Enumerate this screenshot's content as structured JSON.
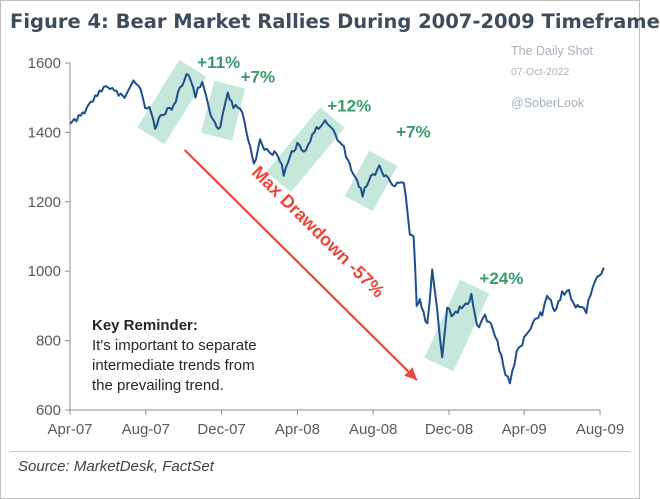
{
  "title": "Figure 4: Bear Market Rallies During 2007-2009 Timeframe",
  "watermark": {
    "name": "The Daily Shot",
    "date": "07-Oct-2022",
    "handle": "@SoberLook"
  },
  "source": "Source: MarketDesk, FactSet",
  "note": {
    "title": "Key Reminder:",
    "lines": [
      "It's important to separate",
      "intermediate trends from",
      "the prevailing trend."
    ]
  },
  "colors": {
    "line": "#1f4e8c",
    "rally": "#9fd8c3",
    "rally_text": "#3a9a6e",
    "drawdown": "#e8473d",
    "axis": "#595959"
  },
  "chart_data": {
    "type": "line",
    "title": "Figure 4: Bear Market Rallies During 2007-2009 Timeframe",
    "xlabel": "",
    "ylabel": "",
    "x_ticks": [
      "Apr-07",
      "Aug-07",
      "Dec-07",
      "Apr-08",
      "Aug-08",
      "Dec-08",
      "Apr-09",
      "Aug-09"
    ],
    "ylim": [
      600,
      1600
    ],
    "y_ticks": [
      600,
      800,
      1000,
      1200,
      1400,
      1600
    ],
    "grid": false,
    "series": [
      {
        "points": [
          [
            "2007-04-01",
            1425
          ],
          [
            "2007-04-15",
            1450
          ],
          [
            "2007-05-01",
            1480
          ],
          [
            "2007-05-15",
            1505
          ],
          [
            "2007-06-01",
            1530
          ],
          [
            "2007-06-15",
            1520
          ],
          [
            "2007-07-01",
            1510
          ],
          [
            "2007-07-12",
            1550
          ],
          [
            "2007-07-20",
            1535
          ],
          [
            "2007-07-31",
            1470
          ],
          [
            "2007-08-10",
            1455
          ],
          [
            "2007-08-16",
            1410
          ],
          [
            "2007-08-25",
            1450
          ],
          [
            "2007-09-05",
            1470
          ],
          [
            "2007-09-15",
            1480
          ],
          [
            "2007-09-25",
            1530
          ],
          [
            "2007-10-09",
            1565
          ],
          [
            "2007-10-20",
            1500
          ],
          [
            "2007-10-31",
            1545
          ],
          [
            "2007-11-10",
            1475
          ],
          [
            "2007-11-20",
            1430
          ],
          [
            "2007-11-26",
            1410
          ],
          [
            "2007-12-05",
            1470
          ],
          [
            "2007-12-11",
            1515
          ],
          [
            "2007-12-20",
            1470
          ],
          [
            "2007-12-31",
            1468
          ],
          [
            "2008-01-10",
            1400
          ],
          [
            "2008-01-22",
            1310
          ],
          [
            "2008-02-01",
            1380
          ],
          [
            "2008-02-15",
            1345
          ],
          [
            "2008-03-01",
            1330
          ],
          [
            "2008-03-10",
            1275
          ],
          [
            "2008-03-20",
            1330
          ],
          [
            "2008-04-01",
            1370
          ],
          [
            "2008-04-15",
            1350
          ],
          [
            "2008-04-25",
            1395
          ],
          [
            "2008-05-05",
            1410
          ],
          [
            "2008-05-19",
            1425
          ],
          [
            "2008-06-01",
            1395
          ],
          [
            "2008-06-15",
            1360
          ],
          [
            "2008-06-30",
            1280
          ],
          [
            "2008-07-15",
            1215
          ],
          [
            "2008-07-25",
            1260
          ],
          [
            "2008-08-11",
            1305
          ],
          [
            "2008-08-25",
            1270
          ],
          [
            "2008-09-05",
            1245
          ],
          [
            "2008-09-19",
            1255
          ],
          [
            "2008-09-29",
            1105
          ],
          [
            "2008-10-05",
            1100
          ],
          [
            "2008-10-10",
            900
          ],
          [
            "2008-10-15",
            920
          ],
          [
            "2008-10-27",
            850
          ],
          [
            "2008-11-04",
            1005
          ],
          [
            "2008-11-12",
            890
          ],
          [
            "2008-11-20",
            752
          ],
          [
            "2008-11-28",
            895
          ],
          [
            "2008-12-05",
            870
          ],
          [
            "2008-12-15",
            880
          ],
          [
            "2008-12-31",
            905
          ],
          [
            "2009-01-06",
            935
          ],
          [
            "2009-01-15",
            845
          ],
          [
            "2009-01-28",
            875
          ],
          [
            "2009-02-10",
            830
          ],
          [
            "2009-02-20",
            770
          ],
          [
            "2009-03-02",
            700
          ],
          [
            "2009-03-09",
            677
          ],
          [
            "2009-03-20",
            770
          ],
          [
            "2009-04-01",
            811
          ],
          [
            "2009-04-15",
            852
          ],
          [
            "2009-04-30",
            872
          ],
          [
            "2009-05-08",
            929
          ],
          [
            "2009-05-20",
            885
          ],
          [
            "2009-06-01",
            942
          ],
          [
            "2009-06-12",
            946
          ],
          [
            "2009-06-23",
            895
          ],
          [
            "2009-07-02",
            897
          ],
          [
            "2009-07-10",
            879
          ],
          [
            "2009-07-20",
            951
          ],
          [
            "2009-07-31",
            987
          ],
          [
            "2009-08-07",
            1010
          ]
        ]
      }
    ],
    "annotations": [
      {
        "text": "+11%",
        "start": "2007-08-16",
        "end": "2007-10-09",
        "low": 1410,
        "high": 1565
      },
      {
        "text": "+7%",
        "start": "2007-11-26",
        "end": "2007-12-11",
        "low": 1410,
        "high": 1515
      },
      {
        "text": "+12%",
        "start": "2008-03-10",
        "end": "2008-05-19",
        "low": 1275,
        "high": 1425
      },
      {
        "text": "+7%",
        "start": "2008-07-15",
        "end": "2008-08-11",
        "low": 1215,
        "high": 1305
      },
      {
        "text": "+24%",
        "start": "2008-11-20",
        "end": "2009-01-06",
        "low": 752,
        "high": 935
      }
    ],
    "drawdown": {
      "text": "Max Drawdown -57%",
      "start": "2007-10-09",
      "end": "2009-03-09"
    }
  }
}
